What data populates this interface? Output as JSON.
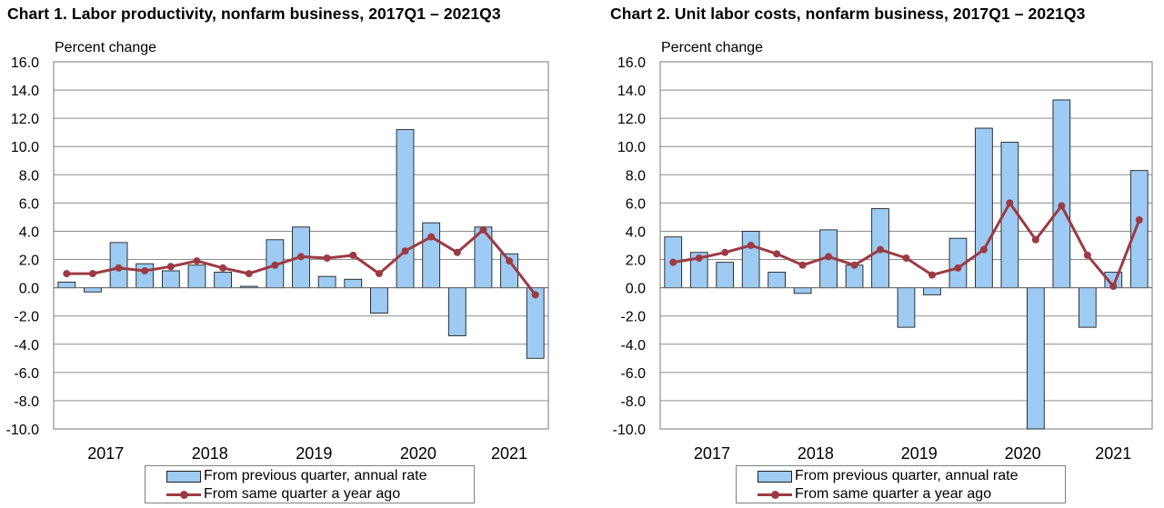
{
  "chart_data": [
    {
      "type": "bar",
      "title": "Chart  1. Labor productivity, nonfarm business, 2017Q1 – 2021Q3",
      "ylabel": "Percent change",
      "ylim": [
        -10,
        16
      ],
      "yticks": [
        "16.0",
        "14.0",
        "12.0",
        "10.0",
        "8.0",
        "6.0",
        "4.0",
        "2.0",
        "0.0",
        "-2.0",
        "-4.0",
        "-6.0",
        "-8.0",
        "-10.0"
      ],
      "year_labels": [
        "2017",
        "2018",
        "2019",
        "2020",
        "2021"
      ],
      "categories": [
        "2017Q1",
        "2017Q2",
        "2017Q3",
        "2017Q4",
        "2018Q1",
        "2018Q2",
        "2018Q3",
        "2018Q4",
        "2019Q1",
        "2019Q2",
        "2019Q3",
        "2019Q4",
        "2020Q1",
        "2020Q2",
        "2020Q3",
        "2020Q4",
        "2021Q1",
        "2021Q2",
        "2021Q3"
      ],
      "grid": true,
      "legend_position": "bottom",
      "series": [
        {
          "name": "From previous quarter, annual rate",
          "kind": "bar",
          "color": "#9dcbf3",
          "values": [
            0.4,
            -0.3,
            3.2,
            1.7,
            1.2,
            1.6,
            1.1,
            0.1,
            3.4,
            4.3,
            0.8,
            0.6,
            -1.8,
            11.2,
            4.6,
            -3.4,
            4.3,
            2.4,
            -5.0
          ]
        },
        {
          "name": "From same quarter a year ago",
          "kind": "line",
          "color": "#9c3a43",
          "values": [
            1.0,
            1.0,
            1.4,
            1.2,
            1.5,
            1.9,
            1.4,
            1.0,
            1.6,
            2.2,
            2.1,
            2.3,
            1.0,
            2.6,
            3.6,
            2.5,
            4.1,
            1.9,
            -0.5
          ]
        }
      ]
    },
    {
      "type": "bar",
      "title": "Chart  2. Unit labor costs, nonfarm business, 2017Q1 – 2021Q3",
      "ylabel": "Percent change",
      "ylim": [
        -10,
        16
      ],
      "yticks": [
        "16.0",
        "14.0",
        "12.0",
        "10.0",
        "8.0",
        "6.0",
        "4.0",
        "2.0",
        "0.0",
        "-2.0",
        "-4.0",
        "-6.0",
        "-8.0",
        "-10.0"
      ],
      "year_labels": [
        "2017",
        "2018",
        "2019",
        "2020",
        "2021"
      ],
      "categories": [
        "2017Q1",
        "2017Q2",
        "2017Q3",
        "2017Q4",
        "2018Q1",
        "2018Q2",
        "2018Q3",
        "2018Q4",
        "2019Q1",
        "2019Q2",
        "2019Q3",
        "2019Q4",
        "2020Q1",
        "2020Q2",
        "2020Q3",
        "2020Q4",
        "2021Q1",
        "2021Q2",
        "2021Q3"
      ],
      "grid": true,
      "legend_position": "bottom",
      "series": [
        {
          "name": "From previous quarter, annual rate",
          "kind": "bar",
          "color": "#9dcbf3",
          "values": [
            3.6,
            2.5,
            1.8,
            4.0,
            1.1,
            -0.4,
            4.1,
            1.6,
            5.6,
            -2.8,
            -0.5,
            3.5,
            11.3,
            10.3,
            -10.0,
            13.3,
            -2.8,
            1.1,
            8.3
          ]
        },
        {
          "name": "From same quarter a year ago",
          "kind": "line",
          "color": "#9c3a43",
          "values": [
            1.8,
            2.1,
            2.5,
            3.0,
            2.4,
            1.6,
            2.2,
            1.6,
            2.7,
            2.1,
            0.9,
            1.4,
            2.7,
            6.0,
            3.4,
            5.8,
            2.3,
            0.1,
            4.8
          ]
        }
      ]
    }
  ]
}
